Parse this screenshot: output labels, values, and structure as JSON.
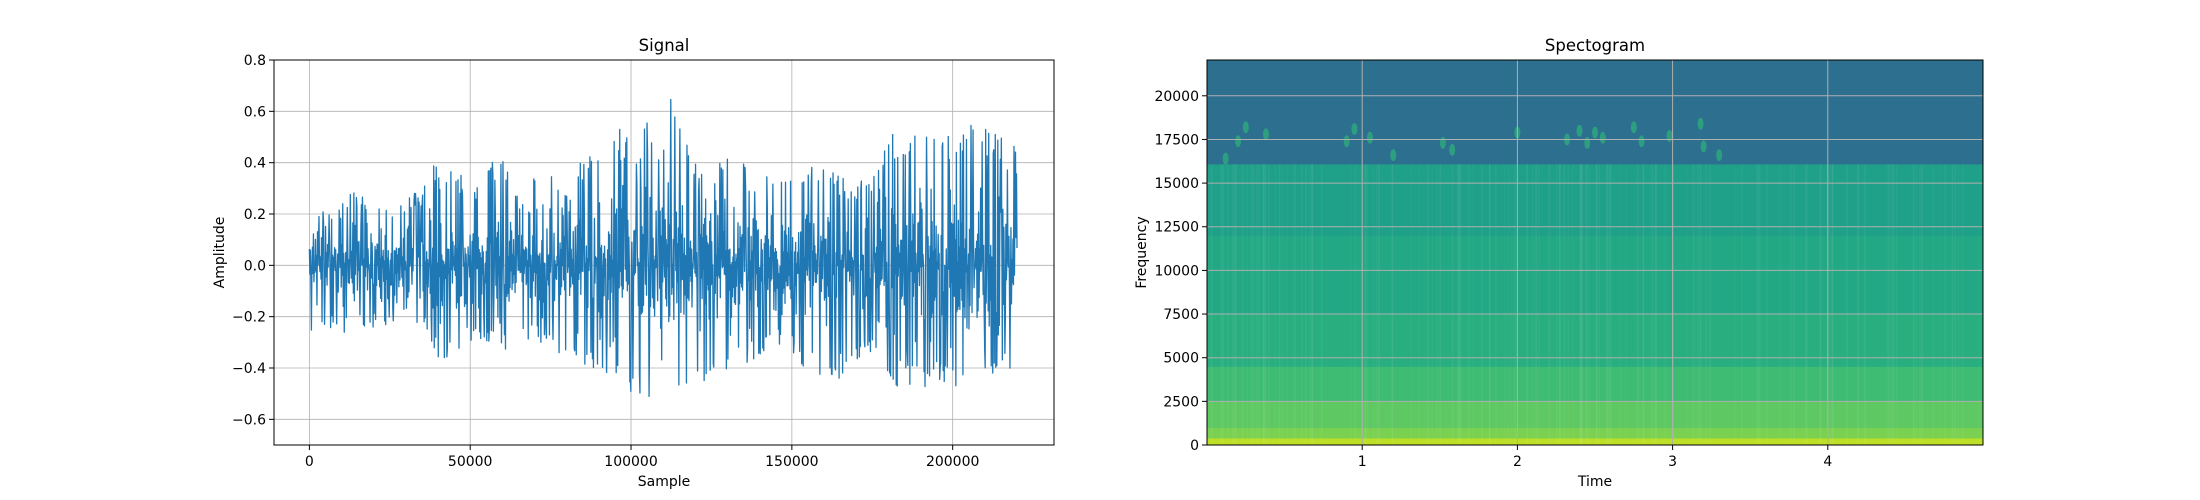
{
  "chart_data": [
    {
      "type": "line",
      "title": "Signal",
      "xlabel": "Sample",
      "ylabel": "Amplitude",
      "xlim": [
        -11000,
        231500
      ],
      "ylim": [
        -0.7,
        0.8
      ],
      "xticks": [
        0,
        50000,
        100000,
        150000,
        200000
      ],
      "xtick_labels": [
        "0",
        "50000",
        "100000",
        "150000",
        "200000"
      ],
      "yticks": [
        -0.6,
        -0.4,
        -0.2,
        0.0,
        0.2,
        0.4,
        0.6,
        0.8
      ],
      "ytick_labels": [
        "−0.6",
        "−0.4",
        "−0.2",
        "0.0",
        "0.2",
        "0.4",
        "0.6",
        "0.8"
      ],
      "grid": true,
      "color": "#1f77b4",
      "series": [
        {
          "x": [
            0,
            5000,
            10000,
            15000,
            20000,
            25000,
            30000,
            35000,
            40000,
            45000,
            50000,
            55000,
            60000,
            65000,
            70000,
            75000,
            80000,
            85000,
            90000,
            95000,
            100000,
            105000,
            110000,
            113000,
            115000,
            120000,
            125000,
            130000,
            135000,
            140000,
            145000,
            150000,
            155000,
            160000,
            165000,
            170000,
            175000,
            180000,
            185000,
            190000,
            195000,
            200000,
            205000,
            210000,
            215000,
            220000
          ],
          "y_max": [
            0.22,
            0.21,
            0.26,
            0.29,
            0.28,
            0.22,
            0.27,
            0.3,
            0.45,
            0.4,
            0.3,
            0.38,
            0.45,
            0.3,
            0.35,
            0.4,
            0.3,
            0.43,
            0.45,
            0.55,
            0.5,
            0.57,
            0.45,
            0.73,
            0.58,
            0.42,
            0.4,
            0.45,
            0.4,
            0.35,
            0.35,
            0.38,
            0.4,
            0.45,
            0.35,
            0.3,
            0.45,
            0.5,
            0.55,
            0.55,
            0.55,
            0.5,
            0.63,
            0.55,
            0.5,
            0.47
          ],
          "y_min": [
            -0.27,
            -0.24,
            -0.27,
            -0.25,
            -0.25,
            -0.24,
            -0.22,
            -0.25,
            -0.37,
            -0.35,
            -0.3,
            -0.33,
            -0.35,
            -0.3,
            -0.3,
            -0.3,
            -0.4,
            -0.4,
            -0.43,
            -0.47,
            -0.5,
            -0.5,
            -0.63,
            -0.4,
            -0.5,
            -0.45,
            -0.45,
            -0.4,
            -0.4,
            -0.35,
            -0.3,
            -0.35,
            -0.45,
            -0.43,
            -0.45,
            -0.38,
            -0.35,
            -0.45,
            -0.5,
            -0.5,
            -0.45,
            -0.5,
            -0.45,
            -0.42,
            -0.42,
            -0.42
          ]
        }
      ]
    },
    {
      "type": "heatmap",
      "title": "Spectogram",
      "xlabel": "Time",
      "ylabel": "Frequency",
      "xlim": [
        0,
        5.0
      ],
      "ylim": [
        0,
        22050
      ],
      "xticks": [
        1,
        2,
        3,
        4
      ],
      "xtick_labels": [
        "1",
        "2",
        "3",
        "4"
      ],
      "yticks": [
        0,
        2500,
        5000,
        7500,
        10000,
        12500,
        15000,
        17500,
        20000
      ],
      "ytick_labels": [
        "0",
        "2500",
        "5000",
        "7500",
        "10000",
        "12500",
        "15000",
        "17500",
        "20000"
      ],
      "grid": true,
      "colormap": [
        "#440154",
        "#3b528b",
        "#2c7e8e",
        "#21918c",
        "#27ad81",
        "#5ec962",
        "#b5de2b",
        "#fde725"
      ],
      "bands": [
        {
          "f_from": 0,
          "f_to": 400,
          "color": "#bddf26"
        },
        {
          "f_from": 400,
          "f_to": 1000,
          "color": "#7ad151"
        },
        {
          "f_from": 1000,
          "f_to": 2500,
          "color": "#5ec962"
        },
        {
          "f_from": 2500,
          "f_to": 4500,
          "color": "#3fbc73"
        },
        {
          "f_from": 4500,
          "f_to": 7500,
          "color": "#29af7f"
        },
        {
          "f_from": 7500,
          "f_to": 12000,
          "color": "#22a884"
        },
        {
          "f_from": 12000,
          "f_to": 16100,
          "color": "#1fa088"
        },
        {
          "f_from": 16100,
          "f_to": 22050,
          "color": "#2c6f8e"
        }
      ],
      "spots": [
        {
          "t": 0.12,
          "f": 16400
        },
        {
          "t": 0.2,
          "f": 17400
        },
        {
          "t": 0.25,
          "f": 18200
        },
        {
          "t": 0.38,
          "f": 17800
        },
        {
          "t": 0.9,
          "f": 17400
        },
        {
          "t": 0.95,
          "f": 18100
        },
        {
          "t": 1.05,
          "f": 17600
        },
        {
          "t": 1.2,
          "f": 16600
        },
        {
          "t": 1.52,
          "f": 17300
        },
        {
          "t": 1.58,
          "f": 16900
        },
        {
          "t": 2.0,
          "f": 17900
        },
        {
          "t": 2.32,
          "f": 17500
        },
        {
          "t": 2.4,
          "f": 18000
        },
        {
          "t": 2.45,
          "f": 17300
        },
        {
          "t": 2.5,
          "f": 17900
        },
        {
          "t": 2.55,
          "f": 17600
        },
        {
          "t": 2.75,
          "f": 18200
        },
        {
          "t": 2.8,
          "f": 17400
        },
        {
          "t": 2.98,
          "f": 17700
        },
        {
          "t": 3.18,
          "f": 18400
        },
        {
          "t": 3.2,
          "f": 17100
        },
        {
          "t": 3.3,
          "f": 16600
        }
      ]
    }
  ]
}
